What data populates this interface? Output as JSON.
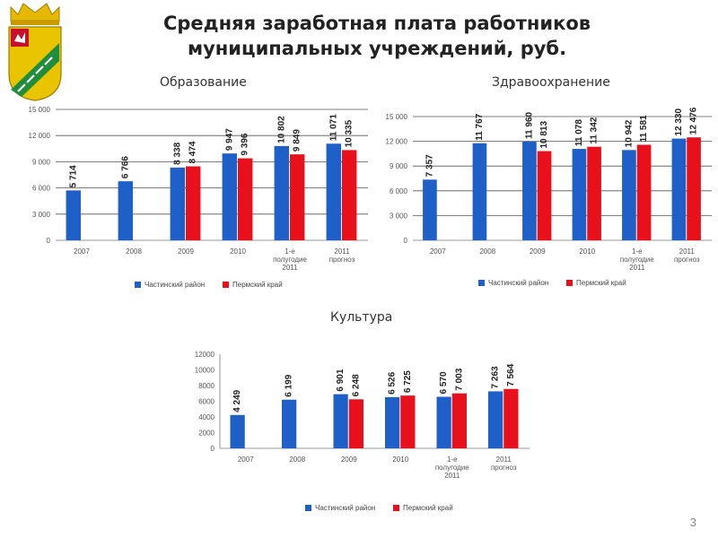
{
  "page": {
    "title_line1": "Средняя заработная плата работников",
    "title_line2": "муниципальных учреждений, руб.",
    "page_number": "3"
  },
  "colors": {
    "series1": "#1F5FC8",
    "series2": "#E8101A"
  },
  "chart_data": [
    {
      "type": "bar",
      "title": "Образование",
      "categories": [
        "2007",
        "2008",
        "2009",
        "2010",
        "1-е полугодие 2011",
        "2011 прогноз"
      ],
      "yticks": [
        "15 000",
        "12 000",
        "9 000",
        "6 000",
        "3 000",
        "0"
      ],
      "ylim": [
        0,
        15000
      ],
      "series": [
        {
          "name": "Частинский район",
          "values": [
            5714,
            6766,
            8338,
            9947,
            10802,
            11071
          ],
          "labels": [
            "5 714",
            "6 766",
            "8 338",
            "9 947",
            "10 802",
            "11 071"
          ]
        },
        {
          "name": "Пермский край",
          "values": [
            null,
            null,
            8474,
            9396,
            9849,
            10335
          ],
          "labels": [
            "",
            "",
            "8 474",
            "9 396",
            "9 849",
            "10 335"
          ]
        }
      ]
    },
    {
      "type": "bar",
      "title": "Здравоохранение",
      "categories": [
        "2007",
        "2008",
        "2009",
        "2010",
        "1-е полугодие 2011",
        "2011 прогноз"
      ],
      "yticks": [
        "15 000",
        "12 000",
        "9 000",
        "6 000",
        "3 000",
        "0"
      ],
      "ylim": [
        0,
        15000
      ],
      "series": [
        {
          "name": "Частинский район",
          "values": [
            7357,
            11767,
            11960,
            11078,
            10942,
            12330
          ],
          "labels": [
            "7 357",
            "11 767",
            "11 960",
            "11 078",
            "10 942",
            "12 330"
          ]
        },
        {
          "name": "Пермский край",
          "values": [
            null,
            null,
            10813,
            11342,
            11581,
            12476
          ],
          "labels": [
            "",
            "",
            "10 813",
            "11 342",
            "11 581",
            "12 476"
          ]
        }
      ]
    },
    {
      "type": "bar",
      "title": "Культура",
      "categories": [
        "2007",
        "2008",
        "2009",
        "2010",
        "1-е полугодие 2011",
        "2011 прогноз"
      ],
      "yticks": [
        "12000",
        "10000",
        "8000",
        "6000",
        "4000",
        "2000",
        "0"
      ],
      "ylim": [
        0,
        12000
      ],
      "series": [
        {
          "name": "Частинский район",
          "values": [
            4249,
            6199,
            6901,
            6526,
            6570,
            7263
          ],
          "labels": [
            "4 249",
            "6 199",
            "6 901",
            "6 526",
            "6 570",
            "7 263"
          ]
        },
        {
          "name": "Пермский край",
          "values": [
            null,
            null,
            6248,
            6725,
            7003,
            7564
          ],
          "labels": [
            "",
            "",
            "6 248",
            "6 725",
            "7 003",
            "7 564"
          ]
        }
      ]
    }
  ]
}
